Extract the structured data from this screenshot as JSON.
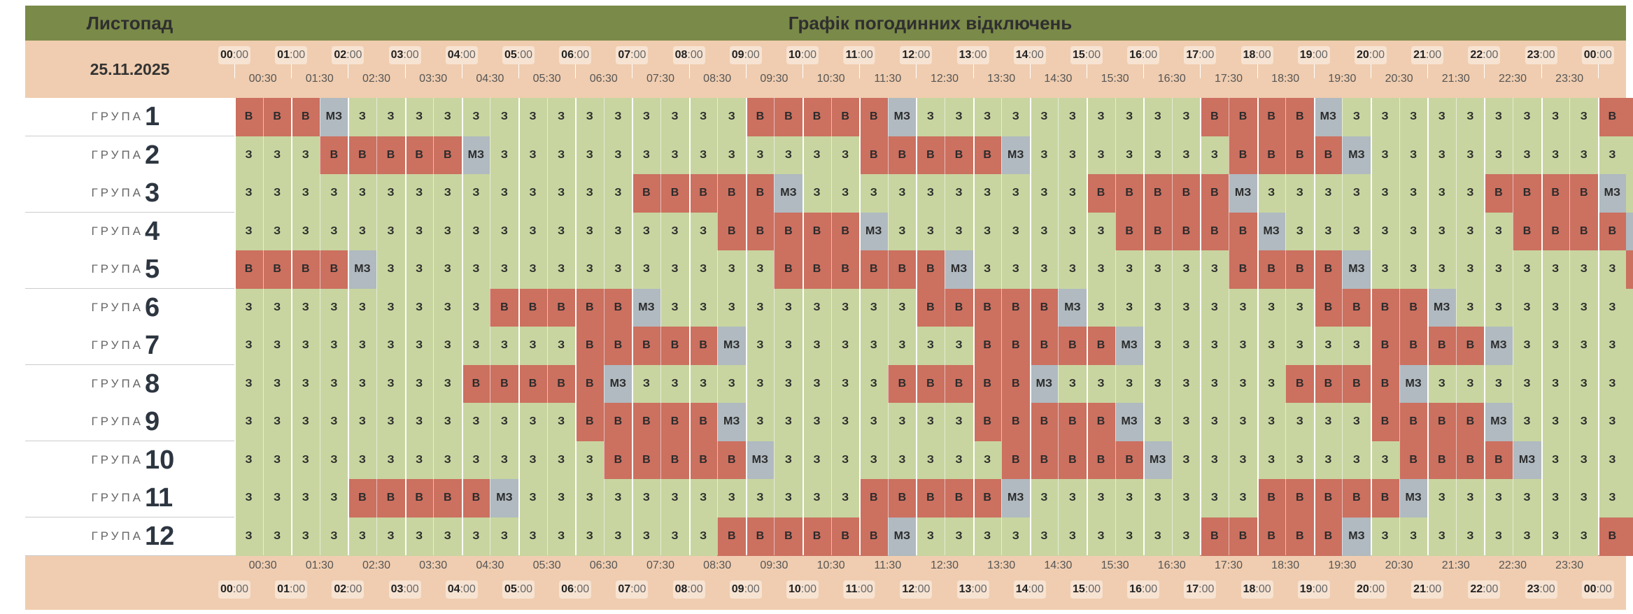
{
  "header": {
    "month": "Листопад",
    "title": "Графік погодинних відключень",
    "date": "25.11.2025"
  },
  "hour_labels": [
    "00",
    "01",
    "02",
    "03",
    "04",
    "05",
    "06",
    "07",
    "08",
    "09",
    "10",
    "11",
    "12",
    "13",
    "14",
    "15",
    "16",
    "17",
    "18",
    "19",
    "20",
    "21",
    "22",
    "23",
    "00"
  ],
  "half_labels": [
    "00:30",
    "01:30",
    "02:30",
    "03:30",
    "04:30",
    "05:30",
    "06:30",
    "07:30",
    "08:30",
    "09:30",
    "10:30",
    "11:30",
    "12:30",
    "13:30",
    "14:30",
    "15:30",
    "16:30",
    "17:30",
    "18:30",
    "19:30",
    "20:30",
    "21:30",
    "22:30",
    "23:30"
  ],
  "minute_suffix": ":00",
  "group_label": "ГРУПА",
  "legend_codes": {
    "on": "З",
    "off": "В",
    "maybe": "МЗ"
  },
  "colors": {
    "on": "#c8d5a0",
    "off": "#cc7060",
    "maybe": "#b0bac0",
    "header": "#7a8a48",
    "band": "#f0cdb0"
  },
  "groups": [
    {
      "number": "1",
      "slots": [
        "В",
        "В",
        "В",
        "МЗ",
        "З",
        "З",
        "З",
        "З",
        "З",
        "З",
        "З",
        "З",
        "З",
        "З",
        "З",
        "З",
        "З",
        "З",
        "В",
        "В",
        "В",
        "В",
        "В",
        "МЗ",
        "З",
        "З",
        "З",
        "З",
        "З",
        "З",
        "З",
        "З",
        "З",
        "З",
        "В",
        "В",
        "В",
        "В",
        "МЗ",
        "З",
        "З",
        "З",
        "З",
        "З",
        "З",
        "З",
        "З",
        "З",
        "В",
        "В"
      ]
    },
    {
      "number": "2",
      "slots": [
        "З",
        "З",
        "З",
        "В",
        "В",
        "В",
        "В",
        "В",
        "МЗ",
        "З",
        "З",
        "З",
        "З",
        "З",
        "З",
        "З",
        "З",
        "З",
        "З",
        "З",
        "З",
        "З",
        "В",
        "В",
        "В",
        "В",
        "В",
        "МЗ",
        "З",
        "З",
        "З",
        "З",
        "З",
        "З",
        "З",
        "В",
        "В",
        "В",
        "В",
        "МЗ",
        "З",
        "З",
        "З",
        "З",
        "З",
        "З",
        "З",
        "З",
        "З",
        "З"
      ]
    },
    {
      "number": "3",
      "slots": [
        "З",
        "З",
        "З",
        "З",
        "З",
        "З",
        "З",
        "З",
        "З",
        "З",
        "З",
        "З",
        "З",
        "З",
        "В",
        "В",
        "В",
        "В",
        "В",
        "МЗ",
        "З",
        "З",
        "З",
        "З",
        "З",
        "З",
        "З",
        "З",
        "З",
        "З",
        "В",
        "В",
        "В",
        "В",
        "В",
        "МЗ",
        "З",
        "З",
        "З",
        "З",
        "З",
        "З",
        "З",
        "З",
        "В",
        "В",
        "В",
        "В",
        "МЗ",
        "З"
      ]
    },
    {
      "number": "4",
      "slots": [
        "З",
        "З",
        "З",
        "З",
        "З",
        "З",
        "З",
        "З",
        "З",
        "З",
        "З",
        "З",
        "З",
        "З",
        "З",
        "З",
        "З",
        "В",
        "В",
        "В",
        "В",
        "В",
        "МЗ",
        "З",
        "З",
        "З",
        "З",
        "З",
        "З",
        "З",
        "З",
        "В",
        "В",
        "В",
        "В",
        "В",
        "МЗ",
        "З",
        "З",
        "З",
        "З",
        "З",
        "З",
        "З",
        "З",
        "В",
        "В",
        "В",
        "В",
        "МЗ"
      ]
    },
    {
      "number": "5",
      "slots": [
        "В",
        "В",
        "В",
        "В",
        "МЗ",
        "З",
        "З",
        "З",
        "З",
        "З",
        "З",
        "З",
        "З",
        "З",
        "З",
        "З",
        "З",
        "З",
        "З",
        "В",
        "В",
        "В",
        "В",
        "В",
        "В",
        "МЗ",
        "З",
        "З",
        "З",
        "З",
        "З",
        "З",
        "З",
        "З",
        "З",
        "В",
        "В",
        "В",
        "В",
        "МЗ",
        "З",
        "З",
        "З",
        "З",
        "З",
        "З",
        "З",
        "З",
        "З",
        "В"
      ]
    },
    {
      "number": "6",
      "slots": [
        "З",
        "З",
        "З",
        "З",
        "З",
        "З",
        "З",
        "З",
        "З",
        "В",
        "В",
        "В",
        "В",
        "В",
        "МЗ",
        "З",
        "З",
        "З",
        "З",
        "З",
        "З",
        "З",
        "З",
        "З",
        "В",
        "В",
        "В",
        "В",
        "В",
        "МЗ",
        "З",
        "З",
        "З",
        "З",
        "З",
        "З",
        "З",
        "З",
        "В",
        "В",
        "В",
        "В",
        "МЗ",
        "З",
        "З",
        "З",
        "З",
        "З",
        "З",
        "З"
      ]
    },
    {
      "number": "7",
      "slots": [
        "З",
        "З",
        "З",
        "З",
        "З",
        "З",
        "З",
        "З",
        "З",
        "З",
        "З",
        "З",
        "В",
        "В",
        "В",
        "В",
        "В",
        "МЗ",
        "З",
        "З",
        "З",
        "З",
        "З",
        "З",
        "З",
        "З",
        "В",
        "В",
        "В",
        "В",
        "В",
        "МЗ",
        "З",
        "З",
        "З",
        "З",
        "З",
        "З",
        "З",
        "З",
        "В",
        "В",
        "В",
        "В",
        "МЗ",
        "З",
        "З",
        "З",
        "З",
        "З"
      ]
    },
    {
      "number": "8",
      "slots": [
        "З",
        "З",
        "З",
        "З",
        "З",
        "З",
        "З",
        "З",
        "В",
        "В",
        "В",
        "В",
        "В",
        "МЗ",
        "З",
        "З",
        "З",
        "З",
        "З",
        "З",
        "З",
        "З",
        "З",
        "В",
        "В",
        "В",
        "В",
        "В",
        "МЗ",
        "З",
        "З",
        "З",
        "З",
        "З",
        "З",
        "З",
        "З",
        "В",
        "В",
        "В",
        "В",
        "МЗ",
        "З",
        "З",
        "З",
        "З",
        "З",
        "З",
        "З",
        "З"
      ]
    },
    {
      "number": "9",
      "slots": [
        "З",
        "З",
        "З",
        "З",
        "З",
        "З",
        "З",
        "З",
        "З",
        "З",
        "З",
        "З",
        "В",
        "В",
        "В",
        "В",
        "В",
        "МЗ",
        "З",
        "З",
        "З",
        "З",
        "З",
        "З",
        "З",
        "З",
        "В",
        "В",
        "В",
        "В",
        "В",
        "МЗ",
        "З",
        "З",
        "З",
        "З",
        "З",
        "З",
        "З",
        "З",
        "В",
        "В",
        "В",
        "В",
        "МЗ",
        "З",
        "З",
        "З",
        "З",
        "З"
      ]
    },
    {
      "number": "10",
      "slots": [
        "З",
        "З",
        "З",
        "З",
        "З",
        "З",
        "З",
        "З",
        "З",
        "З",
        "З",
        "З",
        "З",
        "В",
        "В",
        "В",
        "В",
        "В",
        "МЗ",
        "З",
        "З",
        "З",
        "З",
        "З",
        "З",
        "З",
        "З",
        "В",
        "В",
        "В",
        "В",
        "В",
        "МЗ",
        "З",
        "З",
        "З",
        "З",
        "З",
        "З",
        "З",
        "З",
        "В",
        "В",
        "В",
        "В",
        "МЗ",
        "З",
        "З",
        "З",
        "З"
      ]
    },
    {
      "number": "11",
      "slots": [
        "З",
        "З",
        "З",
        "З",
        "В",
        "В",
        "В",
        "В",
        "В",
        "МЗ",
        "З",
        "З",
        "З",
        "З",
        "З",
        "З",
        "З",
        "З",
        "З",
        "З",
        "З",
        "З",
        "В",
        "В",
        "В",
        "В",
        "В",
        "МЗ",
        "З",
        "З",
        "З",
        "З",
        "З",
        "З",
        "З",
        "З",
        "В",
        "В",
        "В",
        "В",
        "В",
        "МЗ",
        "З",
        "З",
        "З",
        "З",
        "З",
        "З",
        "З",
        "З"
      ]
    },
    {
      "number": "12",
      "slots": [
        "З",
        "З",
        "З",
        "З",
        "З",
        "З",
        "З",
        "З",
        "З",
        "З",
        "З",
        "З",
        "З",
        "З",
        "З",
        "З",
        "З",
        "В",
        "В",
        "В",
        "В",
        "В",
        "В",
        "МЗ",
        "З",
        "З",
        "З",
        "З",
        "З",
        "З",
        "З",
        "З",
        "З",
        "З",
        "В",
        "В",
        "В",
        "В",
        "В",
        "МЗ",
        "З",
        "З",
        "З",
        "З",
        "З",
        "З",
        "З",
        "З",
        "В",
        "В"
      ]
    }
  ]
}
